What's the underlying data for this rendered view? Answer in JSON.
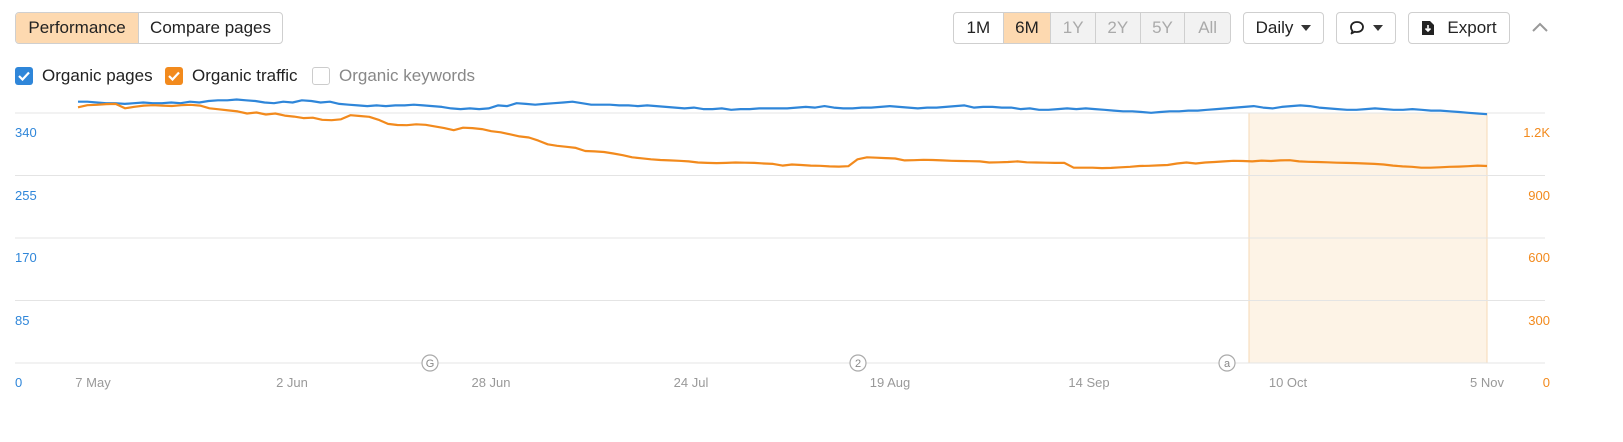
{
  "tabs": {
    "performance": "Performance",
    "compare": "Compare pages"
  },
  "ranges": [
    {
      "label": "1M",
      "state": "normal"
    },
    {
      "label": "6M",
      "state": "active"
    },
    {
      "label": "1Y",
      "state": "disabled"
    },
    {
      "label": "2Y",
      "state": "disabled"
    },
    {
      "label": "5Y",
      "state": "disabled"
    },
    {
      "label": "All",
      "state": "disabled"
    }
  ],
  "granularity": "Daily",
  "export_label": "Export",
  "legend": [
    {
      "label": "Organic pages",
      "checked": true,
      "color": "#2f86d9"
    },
    {
      "label": "Organic traffic",
      "checked": true,
      "color": "#f28a1d"
    },
    {
      "label": "Organic keywords",
      "checked": false,
      "color": "#888888"
    }
  ],
  "annotations": [
    "G",
    "2",
    "a"
  ],
  "chart_data": {
    "type": "line",
    "x_ticks": [
      "7 May",
      "2 Jun",
      "28 Jun",
      "24 Jul",
      "19 Aug",
      "14 Sep",
      "10 Oct",
      "5 Nov"
    ],
    "y_left_ticks": [
      "0",
      "85",
      "170",
      "255",
      "340"
    ],
    "y_right_ticks": [
      "0",
      "300",
      "600",
      "900",
      "1.2K"
    ],
    "y_left_range": [
      0,
      340
    ],
    "y_right_range": [
      0,
      1200
    ],
    "grid": true,
    "highlight_range": [
      "2 Oct",
      "5 Nov"
    ],
    "series": [
      {
        "name": "Organic pages",
        "axis": "left",
        "color": "#2f86d9",
        "values": [
          339,
          339,
          338,
          337,
          337,
          336,
          337,
          338,
          337,
          337,
          338,
          337,
          339,
          338,
          340,
          341,
          341,
          342,
          341,
          340,
          338,
          337,
          339,
          338,
          341,
          340,
          338,
          339,
          336,
          335,
          334,
          333,
          334,
          333,
          334,
          334,
          335,
          334,
          333,
          332,
          330,
          329,
          330,
          329,
          330,
          334,
          333,
          337,
          336,
          335,
          336,
          337,
          338,
          339,
          337,
          335,
          335,
          335,
          334,
          334,
          333,
          334,
          333,
          332,
          331,
          330,
          331,
          329,
          329,
          330,
          328,
          329,
          329,
          330,
          330,
          330,
          330,
          331,
          332,
          331,
          333,
          331,
          330,
          330,
          331,
          331,
          332,
          333,
          332,
          331,
          330,
          331,
          331,
          332,
          333,
          334,
          331,
          332,
          332,
          331,
          331,
          329,
          330,
          328,
          328,
          329,
          330,
          329,
          330,
          329,
          328,
          327,
          326,
          326,
          325,
          324,
          325,
          326,
          326,
          327,
          327,
          328,
          329,
          330,
          331,
          332,
          333,
          331,
          330,
          332,
          333,
          334,
          333,
          331,
          330,
          329,
          328,
          328,
          329,
          330,
          329,
          328,
          328,
          329,
          328,
          327,
          327,
          326,
          325,
          324,
          323,
          322
        ],
        "note": "stylised reading of the line"
      },
      {
        "name": "Organic traffic",
        "axis": "right",
        "color": "#f28a1d",
        "values": [
          1170,
          1180,
          1182,
          1185,
          1186,
          1165,
          1172,
          1178,
          1180,
          1178,
          1176,
          1180,
          1182,
          1178,
          1165,
          1160,
          1155,
          1150,
          1140,
          1145,
          1135,
          1140,
          1130,
          1125,
          1118,
          1120,
          1110,
          1108,
          1112,
          1132,
          1128,
          1124,
          1110,
          1090,
          1085,
          1084,
          1088,
          1086,
          1078,
          1070,
          1060,
          1072,
          1070,
          1065,
          1055,
          1050,
          1040,
          1030,
          1025,
          1010,
          992,
          985,
          980,
          975,
          960,
          958,
          955,
          948,
          940,
          930,
          925,
          920,
          917,
          915,
          913,
          910,
          905,
          903,
          902,
          903,
          905,
          904,
          903,
          900,
          898,
          890,
          895,
          893,
          890,
          889,
          886,
          885,
          887,
          920,
          930,
          928,
          926,
          924,
          915,
          916,
          918,
          917,
          915,
          913,
          912,
          911,
          910,
          905,
          906,
          907,
          910,
          906,
          905,
          904,
          903,
          903,
          880,
          880,
          880,
          878,
          879,
          882,
          884,
          888,
          889,
          891,
          893,
          900,
          905,
          900,
          905,
          907,
          910,
          913,
          912,
          910,
          914,
          912,
          915,
          916,
          910,
          908,
          907,
          906,
          904,
          903,
          902,
          900,
          898,
          895,
          890,
          886,
          884,
          880,
          880,
          882,
          884,
          885,
          887,
          890,
          888
        ],
        "note": "stylised reading of the line"
      }
    ]
  }
}
